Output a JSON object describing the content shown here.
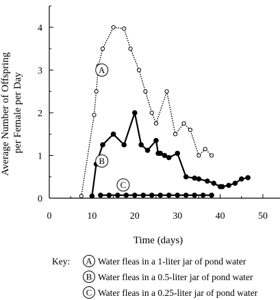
{
  "chart_data": {
    "type": "line",
    "xlabel": "Time (days)",
    "ylabel_lines": [
      "Average Number of Offspring",
      "per Female per Day"
    ],
    "xlim": [
      0,
      55
    ],
    "ylim": [
      0,
      4.5
    ],
    "x_ticks": [
      0,
      10,
      20,
      30,
      40,
      50
    ],
    "y_ticks": [
      0,
      1,
      2,
      3,
      4
    ],
    "x_tick_labels": [
      "0",
      "10",
      "20",
      "30",
      "40",
      "50"
    ],
    "y_tick_labels": [
      "0",
      "1",
      "2",
      "3",
      "4"
    ],
    "grid": false,
    "series": [
      {
        "name": "A",
        "style": "dotted",
        "marker": "open-circle",
        "x": [
          7.5,
          10.5,
          11,
          11.5,
          12.5,
          15,
          17.5,
          19,
          21,
          22.5,
          24,
          25,
          27.5,
          29.5,
          31.5,
          33,
          35,
          36.5,
          38
        ],
        "y": [
          0.05,
          1.95,
          2.5,
          3.1,
          3.5,
          4.0,
          3.97,
          3.5,
          3.0,
          2.5,
          2.0,
          1.75,
          2.5,
          1.5,
          1.75,
          1.6,
          1.0,
          1.15,
          1.0
        ]
      },
      {
        "name": "B",
        "style": "solid",
        "marker": "filled-circle",
        "x": [
          10,
          11,
          12.5,
          15,
          17.5,
          20,
          21.5,
          23,
          25,
          25.5,
          26,
          27,
          28,
          30,
          32,
          34,
          35,
          37,
          38.5,
          40,
          40.5,
          42,
          43.5,
          45,
          46.5
        ],
        "y": [
          0.05,
          0.8,
          1.25,
          1.5,
          1.25,
          2.0,
          1.25,
          1.12,
          1.35,
          1.05,
          1.05,
          1.0,
          0.95,
          1.05,
          0.5,
          0.47,
          0.45,
          0.4,
          0.35,
          0.27,
          0.27,
          0.3,
          0.35,
          0.45,
          0.48
        ]
      },
      {
        "name": "C",
        "style": "solid",
        "marker": "filled-circle",
        "x": [
          12,
          14,
          16,
          18,
          20,
          22,
          24,
          26,
          28,
          30,
          32,
          34,
          36,
          38
        ],
        "y": [
          0.07,
          0.07,
          0.07,
          0.07,
          0.07,
          0.07,
          0.07,
          0.07,
          0.07,
          0.07,
          0.07,
          0.07,
          0.07,
          0.07
        ]
      }
    ],
    "curve_labels": [
      {
        "letter": "A",
        "x": 12.3,
        "y": 3.0
      },
      {
        "letter": "B",
        "x": 12.3,
        "y": 0.87
      },
      {
        "letter": "C",
        "x": 17.3,
        "y": 0.31
      }
    ],
    "key": {
      "title": "Key:",
      "entries": [
        {
          "letter": "A",
          "text": "Water fleas in a 1-liter jar of pond water"
        },
        {
          "letter": "B",
          "text": "Water fleas in a 0.5-liter jar of pond water"
        },
        {
          "letter": "C",
          "text": "Water fleas in a 0.25-liter jar of pond water"
        }
      ]
    }
  }
}
